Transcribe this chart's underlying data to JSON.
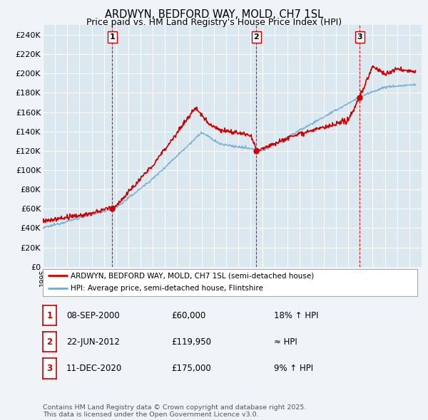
{
  "title": "ARDWYN, BEDFORD WAY, MOLD, CH7 1SL",
  "subtitle": "Price paid vs. HM Land Registry's House Price Index (HPI)",
  "title_fontsize": 10.5,
  "subtitle_fontsize": 9,
  "background_color": "#f0f4f8",
  "plot_bg_color": "#dce8f0",
  "grid_color": "#ffffff",
  "ylim": [
    0,
    250000
  ],
  "yticks": [
    0,
    20000,
    40000,
    60000,
    80000,
    100000,
    120000,
    140000,
    160000,
    180000,
    200000,
    220000,
    240000
  ],
  "sale_year_floats": [
    2000.69,
    2012.47,
    2020.95
  ],
  "sale_prices": [
    60000,
    119950,
    175000
  ],
  "sale_labels": [
    "1",
    "2",
    "3"
  ],
  "sale_label_color": "#cc0000",
  "red_line_color": "#cc0000",
  "blue_line_color": "#6fa8d0",
  "vline_color": "#cc0000",
  "legend_entries": [
    "ARDWYN, BEDFORD WAY, MOLD, CH7 1SL (semi-detached house)",
    "HPI: Average price, semi-detached house, Flintshire"
  ],
  "table_rows": [
    {
      "label": "1",
      "date": "08-SEP-2000",
      "price": "£60,000",
      "note": "18% ↑ HPI"
    },
    {
      "label": "2",
      "date": "22-JUN-2012",
      "price": "£119,950",
      "note": "≈ HPI"
    },
    {
      "label": "3",
      "date": "11-DEC-2020",
      "price": "£175,000",
      "note": "9% ↑ HPI"
    }
  ],
  "footer_text": "Contains HM Land Registry data © Crown copyright and database right 2025.\nThis data is licensed under the Open Government Licence v3.0."
}
